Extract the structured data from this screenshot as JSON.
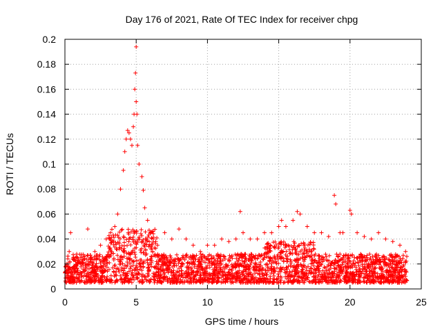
{
  "chart_data": {
    "type": "scatter",
    "title": "Day 176 of 2021, Rate Of TEC Index for receiver chpg",
    "xlabel": "GPS time / hours",
    "ylabel": "ROTI / TECUs",
    "xlim": [
      0,
      25
    ],
    "ylim": [
      0,
      0.2
    ],
    "x_ticks": [
      "0",
      "5",
      "10",
      "15",
      "20",
      "25"
    ],
    "y_ticks": [
      "0",
      "0.02",
      "0.04",
      "0.06",
      "0.08",
      "0.1",
      "0.12",
      "0.14",
      "0.16",
      "0.18",
      "0.2"
    ],
    "grid": true,
    "marker": "plus",
    "color": "#ff0000",
    "series": [
      {
        "x": [
          0.1,
          0.3,
          0.4,
          0.6,
          0.9,
          1.2,
          1.6,
          1.8,
          2.1,
          2.5,
          2.9,
          3.2,
          3.5,
          3.7,
          3.9,
          4.1,
          4.2,
          4.3,
          4.4,
          4.5,
          4.6,
          4.7,
          4.8,
          4.85,
          4.9,
          4.95,
          5.0,
          5.0,
          5.05,
          5.1,
          5.2,
          5.4,
          5.5,
          5.6,
          5.8,
          6.0,
          6.2,
          6.5,
          7.0,
          7.5,
          8.0,
          8.5,
          9.0,
          9.5,
          10.0,
          10.5,
          11.0,
          11.5,
          12.0,
          12.3,
          12.5,
          13.0,
          13.5,
          14.0,
          14.5,
          15.0,
          15.2,
          15.5,
          16.0,
          16.3,
          16.5,
          17.0,
          17.5,
          18.0,
          18.5,
          18.9,
          19.0,
          19.3,
          19.5,
          20.0,
          20.1,
          20.5,
          21.0,
          21.5,
          22.0,
          22.5,
          23.0,
          23.5,
          23.9
        ],
        "y": [
          0.02,
          0.03,
          0.045,
          0.025,
          0.02,
          0.02,
          0.048,
          0.025,
          0.03,
          0.035,
          0.04,
          0.045,
          0.05,
          0.06,
          0.08,
          0.095,
          0.11,
          0.12,
          0.127,
          0.125,
          0.12,
          0.115,
          0.13,
          0.14,
          0.16,
          0.173,
          0.194,
          0.15,
          0.14,
          0.115,
          0.1,
          0.09,
          0.079,
          0.065,
          0.055,
          0.045,
          0.04,
          0.035,
          0.045,
          0.04,
          0.048,
          0.04,
          0.035,
          0.03,
          0.035,
          0.035,
          0.04,
          0.038,
          0.04,
          0.062,
          0.045,
          0.04,
          0.04,
          0.045,
          0.045,
          0.05,
          0.055,
          0.05,
          0.055,
          0.062,
          0.06,
          0.05,
          0.045,
          0.045,
          0.042,
          0.075,
          0.068,
          0.045,
          0.045,
          0.063,
          0.06,
          0.045,
          0.042,
          0.04,
          0.045,
          0.04,
          0.038,
          0.035,
          0.03
        ]
      }
    ],
    "baseline_cloud": {
      "x_start": 0,
      "x_end": 24,
      "y_min": 0.005,
      "y_max": 0.028
    }
  }
}
